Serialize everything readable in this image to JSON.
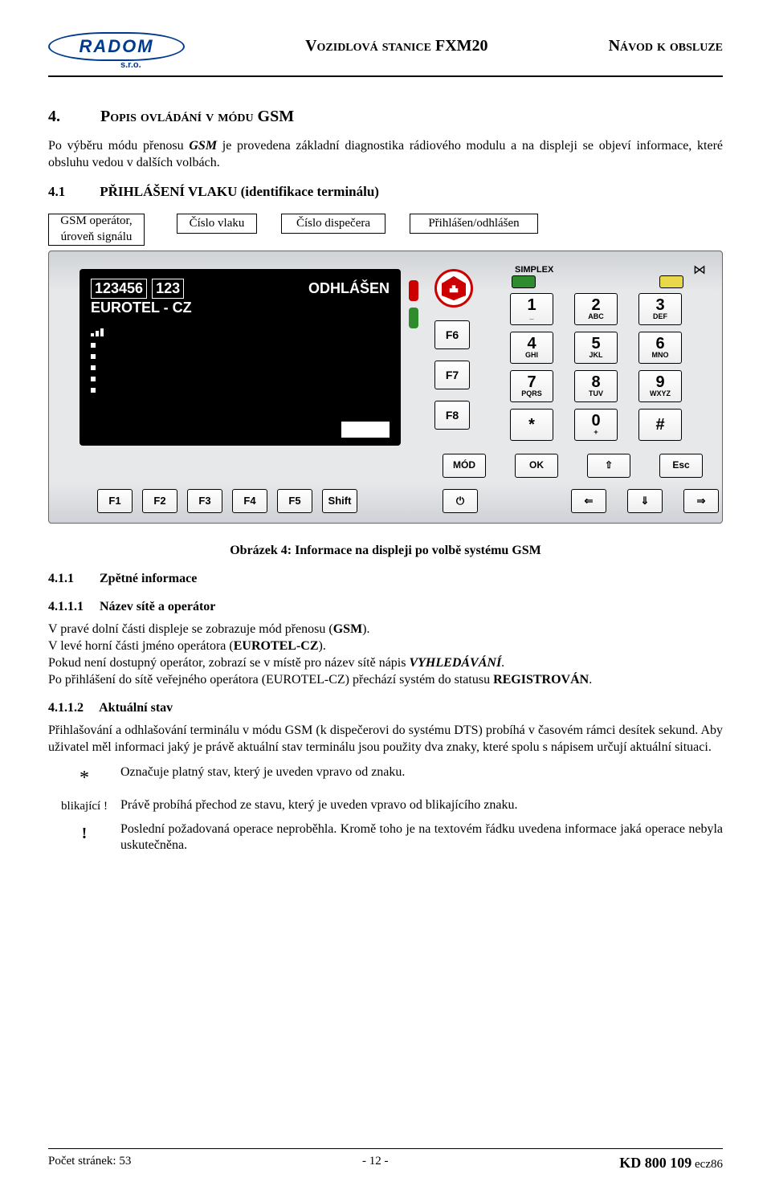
{
  "header": {
    "logo": "RADOM",
    "logo_sub": "s.r.o.",
    "title": "Vozidlová stanice FXM20",
    "right": "Návod k obsluze"
  },
  "h2_num": "4.",
  "h2_text": "Popis ovládání v módu GSM",
  "p_intro_a": "Po výběru módu přenosu ",
  "p_intro_gsm": "GSM",
  "p_intro_b": " je provedena základní diagnostika rádiového modulu a na displeji se objeví informace, které obsluhu vedou v dalších volbách.",
  "h3_1_num": "4.1",
  "h3_1_text": "PŘIHLÁŠENÍ VLAKU (identifikace terminálu)",
  "annot": {
    "a": "GSM operátor, úroveň signálu",
    "b": "Číslo vlaku",
    "c": "Číslo dispečera",
    "d": "Přihlášen/odhlášen"
  },
  "lcd": {
    "train_no": "123456",
    "disp_no": "123",
    "status": "ODHLÁŠEN",
    "operator": "EUROTEL - CZ"
  },
  "top_labels": {
    "simplex": "SIMPLEX"
  },
  "colors": {
    "panel_bg": "#e7e8ea",
    "lcd_bg": "#000000",
    "lcd_fg": "#ffffff",
    "alarm": "#cc0000",
    "green": "#2e8b2e",
    "yellow": "#e8d84a",
    "logo": "#003a8c"
  },
  "fn_keys": [
    "F6",
    "F7",
    "F8"
  ],
  "keypad": [
    [
      {
        "m": "1",
        "s": "_"
      },
      {
        "m": "2",
        "s": "ABC"
      },
      {
        "m": "3",
        "s": "DEF"
      }
    ],
    [
      {
        "m": "4",
        "s": "GHI"
      },
      {
        "m": "5",
        "s": "JKL"
      },
      {
        "m": "6",
        "s": "MNO"
      }
    ],
    [
      {
        "m": "7",
        "s": "PQRS"
      },
      {
        "m": "8",
        "s": "TUV"
      },
      {
        "m": "9",
        "s": "WXYZ"
      }
    ],
    [
      {
        "m": "*",
        "s": ""
      },
      {
        "m": "0",
        "s": "+"
      },
      {
        "m": "#",
        "s": ""
      }
    ]
  ],
  "ctrl_keys": [
    "MÓD",
    "OK",
    "⇧",
    "Esc"
  ],
  "bottom_keys": [
    "F1",
    "F2",
    "F3",
    "F4",
    "F5",
    "Shift",
    "⏻",
    "⇐",
    "⇓",
    "⇒"
  ],
  "caption": "Obrázek 4:  Informace na displeji po volbě systému GSM",
  "h4_11_num": "4.1.1",
  "h4_11_text": "Zpětné informace",
  "h4_111_num": "4.1.1.1",
  "h4_111_text": "Název sítě a operátor",
  "p111_a": "V pravé dolní části displeje se zobrazuje mód přenosu  (",
  "p111_gsm": "GSM",
  "p111_b": ").",
  "p111_c": "V levé  horní  části  jméno operátora  (",
  "p111_op": "EUROTEL-CZ",
  "p111_d": ").",
  "p111_e": "Pokud není dostupný operátor, zobrazí se v místě pro název sítě nápis ",
  "p111_vy": "VYHLEDÁVÁNÍ",
  "p111_f": ".",
  "p111_g": "Po přihlášení do sítě veřejného operátora (EUROTEL-CZ) přechází systém do statusu ",
  "p111_reg": "REGISTROVÁN",
  "p111_h": ".",
  "h4_112_num": "4.1.1.2",
  "h4_112_text": "Aktuální stav",
  "p112": "Přihlašování a odhlašování terminálu v módu GSM (k dispečerovi do systému DTS) probíhá v časovém rámci desítek sekund. Aby uživatel měl informaci jaký je právě aktuální stav terminálu jsou použity dva znaky, které spolu s nápisem určují aktuální situaci.",
  "symtable": [
    {
      "sym": "*",
      "desc": "Označuje platný stav, který je uveden vpravo od znaku."
    },
    {
      "sym": "blikající !",
      "desc": "Právě probíhá přechod ze stavu, který je uveden vpravo od blikajícího znaku."
    },
    {
      "sym": "!",
      "desc": "Poslední požadovaná operace neproběhla. Kromě toho je na textovém řádku uvedena informace jaká operace nebyla uskutečněna."
    }
  ],
  "footer": {
    "left_a": "Počet stránek: ",
    "left_b": "53",
    "center": "- 12 -",
    "right_a": "KD 800 109",
    "right_b": " ecz86"
  }
}
